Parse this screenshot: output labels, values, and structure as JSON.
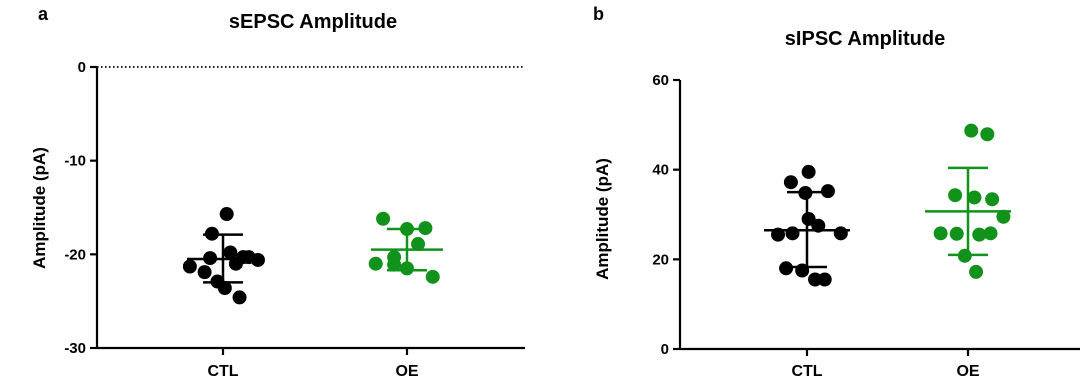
{
  "chart_data": [
    {
      "type": "scatter",
      "panel_label": "a",
      "title": "sEPSC Amplitude",
      "ylabel": "Amplitude (pA)",
      "xlabel": "",
      "ylim": [
        -30,
        0
      ],
      "yticks": [
        0,
        -10,
        -20,
        -30
      ],
      "zero_line": "dotted",
      "categories": [
        "CTL",
        "OE"
      ],
      "series": [
        {
          "category": "CTL",
          "color": "#000000",
          "mean": -20.5,
          "sd_low": -23.0,
          "sd_high": -17.9,
          "points": [
            {
              "offset": -0.18,
              "value": -21.3
            },
            {
              "offset": -0.1,
              "value": -21.9
            },
            {
              "offset": -0.07,
              "value": -20.4
            },
            {
              "offset": -0.03,
              "value": -22.9
            },
            {
              "offset": -0.06,
              "value": -17.8
            },
            {
              "offset": 0.02,
              "value": -15.7
            },
            {
              "offset": 0.04,
              "value": -19.8
            },
            {
              "offset": 0.07,
              "value": -21.0
            },
            {
              "offset": 0.01,
              "value": -23.6
            },
            {
              "offset": 0.09,
              "value": -24.6
            },
            {
              "offset": 0.11,
              "value": -20.3
            },
            {
              "offset": 0.14,
              "value": -20.3
            },
            {
              "offset": 0.19,
              "value": -20.6
            }
          ]
        },
        {
          "category": "OE",
          "color": "#11921b",
          "mean": -19.5,
          "sd_low": -21.7,
          "sd_high": -17.3,
          "points": [
            {
              "offset": -0.13,
              "value": -16.2
            },
            {
              "offset": -0.17,
              "value": -21.0
            },
            {
              "offset": -0.07,
              "value": -20.3
            },
            {
              "offset": -0.07,
              "value": -21.1
            },
            {
              "offset": 0.0,
              "value": -17.3
            },
            {
              "offset": 0.0,
              "value": -21.5
            },
            {
              "offset": 0.06,
              "value": -18.9
            },
            {
              "offset": 0.1,
              "value": -17.2
            },
            {
              "offset": 0.14,
              "value": -22.4
            }
          ]
        }
      ]
    },
    {
      "type": "scatter",
      "panel_label": "b",
      "title": "sIPSC Amplitude",
      "ylabel": "Amplitude (pA)",
      "xlabel": "",
      "ylim": [
        0,
        60
      ],
      "yticks": [
        0,
        20,
        40,
        60
      ],
      "categories": [
        "CTL",
        "OE"
      ],
      "series": [
        {
          "category": "CTL",
          "color": "#000000",
          "mean": 26.5,
          "sd_low": 18.3,
          "sd_high": 35.0,
          "points": [
            {
              "offset": -0.18,
              "value": 25.5
            },
            {
              "offset": -0.13,
              "value": 18.0
            },
            {
              "offset": -0.1,
              "value": 37.2
            },
            {
              "offset": -0.09,
              "value": 25.8
            },
            {
              "offset": -0.03,
              "value": 17.5
            },
            {
              "offset": -0.01,
              "value": 34.8
            },
            {
              "offset": 0.01,
              "value": 39.5
            },
            {
              "offset": 0.01,
              "value": 29.0
            },
            {
              "offset": 0.05,
              "value": 15.5
            },
            {
              "offset": 0.07,
              "value": 27.5
            },
            {
              "offset": 0.11,
              "value": 15.5
            },
            {
              "offset": 0.13,
              "value": 35.2
            },
            {
              "offset": 0.21,
              "value": 25.8
            }
          ]
        },
        {
          "category": "OE",
          "color": "#11921b",
          "mean": 30.7,
          "sd_low": 21.0,
          "sd_high": 40.4,
          "points": [
            {
              "offset": -0.17,
              "value": 25.8
            },
            {
              "offset": -0.08,
              "value": 34.3
            },
            {
              "offset": -0.07,
              "value": 25.7
            },
            {
              "offset": -0.02,
              "value": 20.8
            },
            {
              "offset": 0.04,
              "value": 33.8
            },
            {
              "offset": 0.07,
              "value": 25.5
            },
            {
              "offset": 0.02,
              "value": 48.7
            },
            {
              "offset": 0.05,
              "value": 17.2
            },
            {
              "offset": 0.12,
              "value": 47.9
            },
            {
              "offset": 0.15,
              "value": 33.4
            },
            {
              "offset": 0.14,
              "value": 25.8
            },
            {
              "offset": 0.22,
              "value": 29.5
            }
          ]
        }
      ]
    }
  ]
}
